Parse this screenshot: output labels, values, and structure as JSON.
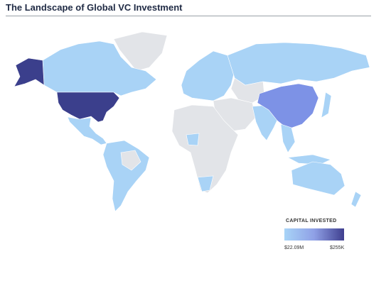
{
  "title": "The Landscape of Global VC Investment",
  "legend": {
    "title": "CAPITAL INVESTED",
    "min_label": "$22.09M",
    "max_label": "$255K"
  }
}
